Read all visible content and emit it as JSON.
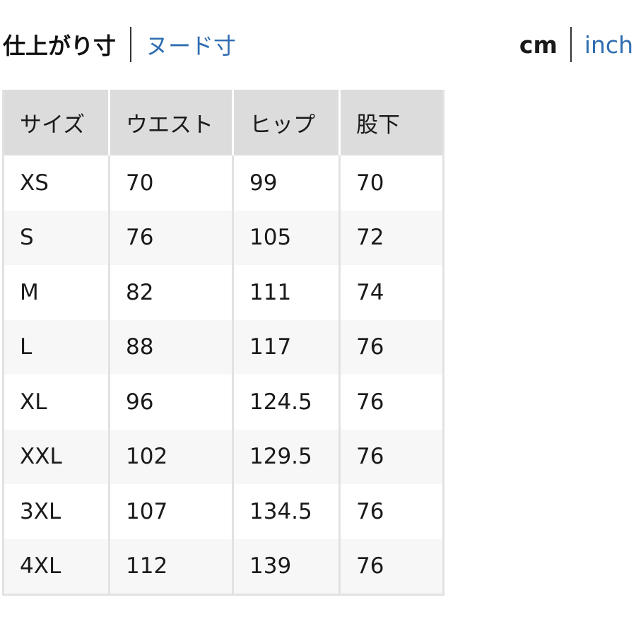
{
  "tabs": {
    "finished": "仕上がり寸",
    "nude": "ヌード寸"
  },
  "units": {
    "cm": "cm",
    "inch": "inch"
  },
  "table": {
    "headers": [
      "サイズ",
      "ウエスト",
      "ヒップ",
      "股下"
    ],
    "rows": [
      [
        "XS",
        "70",
        "99",
        "70"
      ],
      [
        "S",
        "76",
        "105",
        "72"
      ],
      [
        "M",
        "82",
        "111",
        "74"
      ],
      [
        "L",
        "88",
        "117",
        "76"
      ],
      [
        "XL",
        "96",
        "124.5",
        "76"
      ],
      [
        "XXL",
        "102",
        "129.5",
        "76"
      ],
      [
        "3XL",
        "107",
        "134.5",
        "76"
      ],
      [
        "4XL",
        "112",
        "139",
        "76"
      ]
    ]
  },
  "colors": {
    "link": "#2f6db0",
    "header_bg": "#dcdcdc"
  }
}
